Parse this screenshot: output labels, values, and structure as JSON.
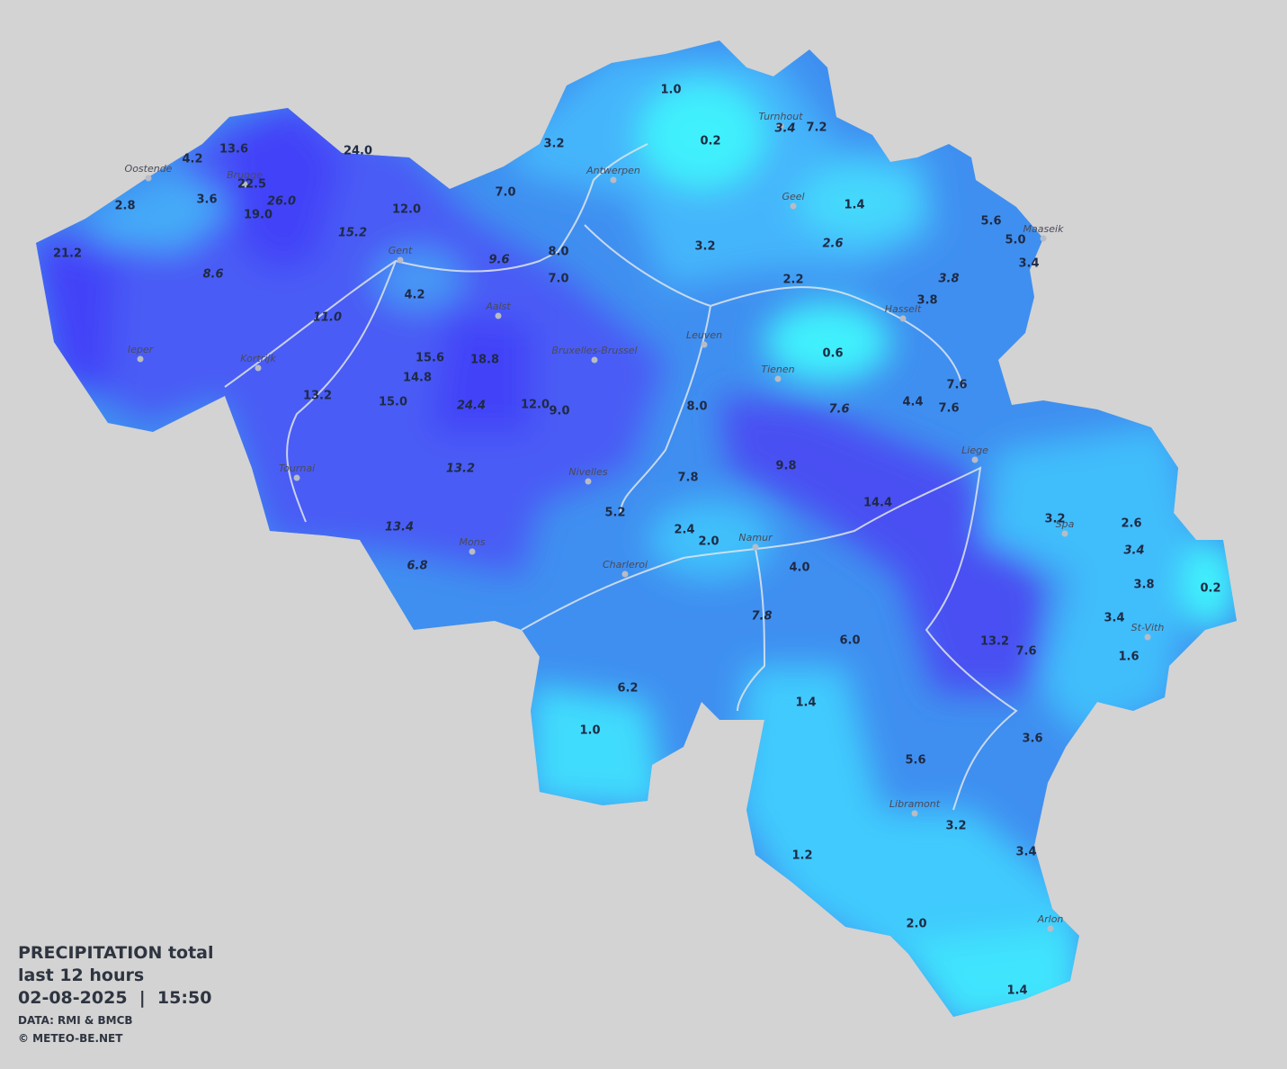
{
  "legend": {
    "title": "PRECIPITATION total",
    "period": "last 12 hours",
    "datetime": "02-08-2025  |  15:50",
    "source": "DATA: RMI & BMCB",
    "copyright": "© METEO-BE.NET"
  },
  "cities": [
    "Oostende",
    "Brugge",
    "Gent",
    "Antwerpen",
    "Turnhout",
    "Geel",
    "Maaseik",
    "Hasselt",
    "Leuven",
    "Tienen",
    "Aalst",
    "Bruxelles-Brussel",
    "Ieper",
    "Kortrijk",
    "Tournai",
    "Nivelles",
    "Mons",
    "Charleroi",
    "Namur",
    "Liege",
    "Spa",
    "St-Vith",
    "Libramont",
    "Arlon"
  ],
  "values": [
    "1.0",
    "0.2",
    "3.4",
    "7.2",
    "3.2",
    "13.6",
    "4.2",
    "24.0",
    "22.5",
    "26.0",
    "19.0",
    "3.6",
    "2.8",
    "7.0",
    "12.0",
    "15.2",
    "21.2",
    "8.6",
    "9.6",
    "8.0",
    "7.0",
    "4.2",
    "11.0",
    "1.4",
    "2.6",
    "3.2",
    "5.6",
    "5.0",
    "3.4",
    "3.8",
    "2.2",
    "3.8",
    "0.6",
    "18.8",
    "15.6",
    "14.8",
    "15.0",
    "13.2",
    "24.4",
    "12.0",
    "9.0",
    "8.0",
    "7.6",
    "7.6",
    "4.4",
    "7.6",
    "13.2",
    "9.8",
    "7.8",
    "14.4",
    "13.4",
    "5.2",
    "2.4",
    "2.0",
    "6.8",
    "3.2",
    "2.6",
    "3.4",
    "3.8",
    "0.2",
    "4.0",
    "3.4",
    "7.8",
    "6.0",
    "13.2",
    "7.6",
    "1.6",
    "6.2",
    "1.4",
    "1.0",
    "3.6",
    "5.6",
    "3.2",
    "1.2",
    "3.4",
    "2.0",
    "1.4"
  ]
}
